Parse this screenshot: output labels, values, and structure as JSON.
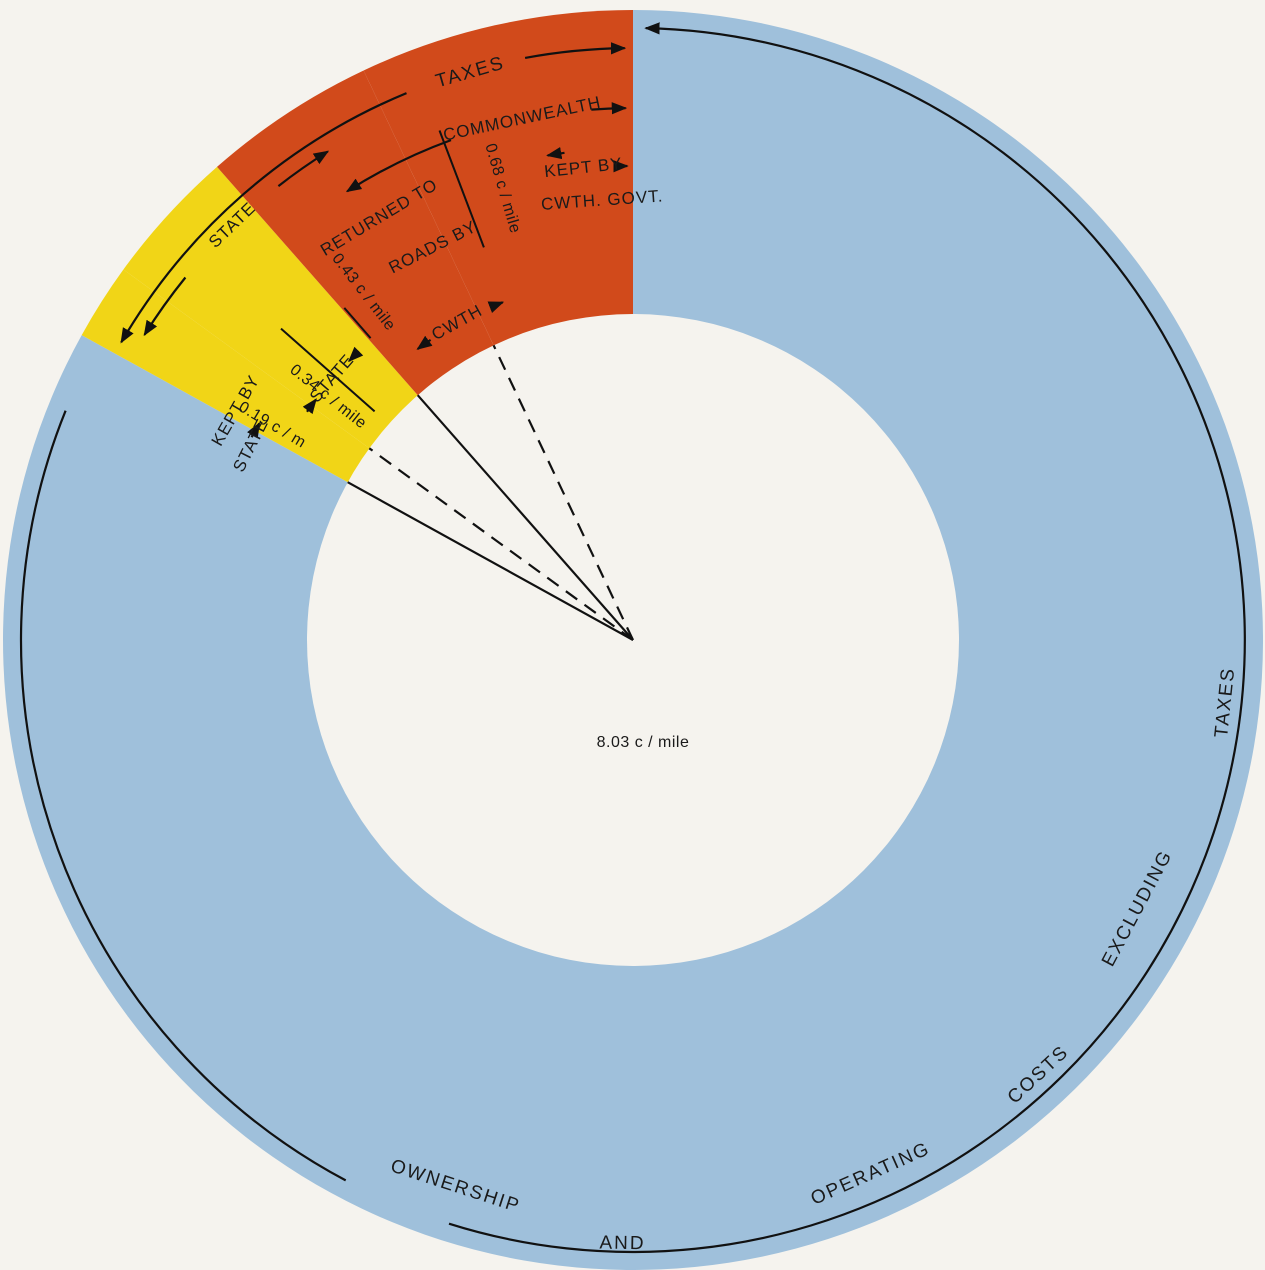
{
  "chart_data": {
    "type": "pie",
    "total_unit": "c / mile",
    "segments": [
      {
        "name": "OWNERSHIP AND OPERATING COSTS EXCLUDING TAXES",
        "value": 8.03,
        "label": "8.03 c / mile",
        "color": "#9fc0db"
      },
      {
        "name": "KEPT BY STATE",
        "value": 0.19,
        "label": "0.19 c / m",
        "color": "#f1d517"
      },
      {
        "name": "RETURNED TO ROADS BY STATE",
        "value": 0.34,
        "label": "0.34 c / mile",
        "color": "#f1d517"
      },
      {
        "name": "RETURNED TO ROADS BY CWTH",
        "value": 0.43,
        "label": "0.43 c / mile",
        "color": "#d14a1b"
      },
      {
        "name": "KEPT BY CWTH. GOVT.",
        "value": 0.68,
        "label": "0.68 c / mile",
        "color": "#d14a1b"
      }
    ],
    "annotations": {
      "taxes": "TAXES",
      "commonwealth": "COMMONWEALTH",
      "state": "STATE",
      "returned_to": "RETURNED TO",
      "roads_by": "ROADS BY",
      "kept_by": "KEPT BY",
      "cwth_govt": "CWTH. GOVT.",
      "cwth": "CWTH",
      "state_inner": "STATE",
      "kept_by_state_1": "KEPT BY",
      "kept_by_state_2": "STATE",
      "ownership": "OWNERSHIP",
      "and": "AND",
      "operating": "OPERATING",
      "costs": "COSTS",
      "excluding": "EXCLUDING",
      "taxes_outer": "TAXES"
    },
    "colors": {
      "blue": "#9fc0db",
      "yellow": "#f1d517",
      "red": "#d14a1b",
      "background": "#f5f3ee"
    }
  }
}
